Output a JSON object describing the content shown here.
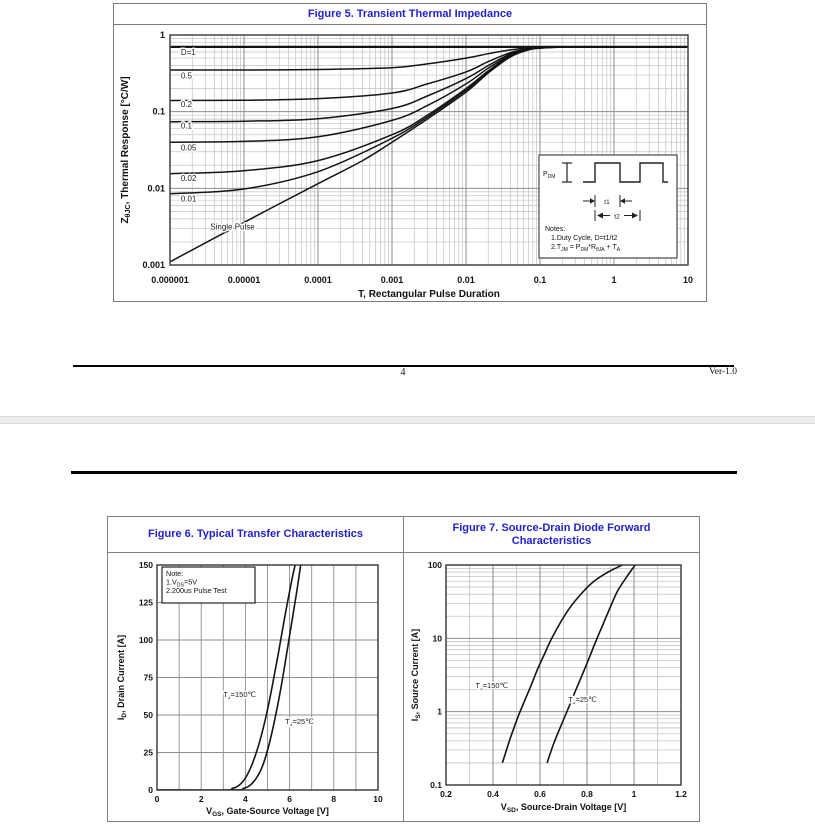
{
  "page1": {
    "figure_title": "Figure 5. Transient Thermal Impedance",
    "footer": {
      "page_number": "4",
      "version": "Ver-1.0"
    }
  },
  "page2": {
    "fig6_title": "Figure 6. Typical Transfer Characteristics",
    "fig7_title": "Figure 7. Source-Drain Diode Forward Characteristics"
  },
  "chart_data": [
    {
      "id": "fig5",
      "type": "line",
      "title": "Figure 5. Transient Thermal Impedance",
      "xlabel": "T, Rectangular Pulse Duration",
      "ylabel": "Z_{θJC}, Thermal Response [°C/W]",
      "xscale": "log",
      "yscale": "log",
      "xlim": [
        1e-06,
        10
      ],
      "ylim": [
        0.001,
        1
      ],
      "grid": true,
      "legend_position": "on-curve",
      "xticks": [
        [
          1e-06,
          "0.000001"
        ],
        [
          1e-05,
          "0.00001"
        ],
        [
          0.0001,
          "0.0001"
        ],
        [
          0.001,
          "0.001"
        ],
        [
          0.01,
          "0.01"
        ],
        [
          0.1,
          "0.1"
        ],
        [
          1,
          "1"
        ],
        [
          10,
          "10"
        ]
      ],
      "yticks": [
        [
          1,
          "1"
        ],
        [
          0.1,
          "0.1"
        ],
        [
          0.01,
          "0.01"
        ],
        [
          0.001,
          "0.001"
        ]
      ],
      "series": [
        {
          "label": "D=1",
          "label_at": [
            1.4e-06,
            0.55
          ],
          "width": 2.2,
          "points": [
            [
              1e-06,
              0.7
            ],
            [
              10,
              0.7
            ]
          ]
        },
        {
          "label": "0.5",
          "label_at": [
            1.4e-06,
            0.27
          ],
          "points": [
            [
              1e-06,
              0.35
            ],
            [
              1e-05,
              0.35
            ],
            [
              0.0001,
              0.355
            ],
            [
              0.001,
              0.375
            ],
            [
              0.003,
              0.42
            ],
            [
              0.01,
              0.5
            ],
            [
              0.02,
              0.57
            ],
            [
              0.04,
              0.64
            ],
            [
              0.07,
              0.68
            ],
            [
              0.1,
              0.695
            ],
            [
              0.3,
              0.7
            ],
            [
              10,
              0.7
            ]
          ]
        },
        {
          "label": "0.2",
          "label_at": [
            1.4e-06,
            0.115
          ],
          "points": [
            [
              1e-06,
              0.14
            ],
            [
              1e-05,
              0.141
            ],
            [
              0.0001,
              0.148
            ],
            [
              0.001,
              0.175
            ],
            [
              0.003,
              0.23
            ],
            [
              0.01,
              0.33
            ],
            [
              0.02,
              0.45
            ],
            [
              0.04,
              0.59
            ],
            [
              0.07,
              0.665
            ],
            [
              0.1,
              0.69
            ],
            [
              0.3,
              0.7
            ],
            [
              10,
              0.7
            ]
          ]
        },
        {
          "label": "0.1",
          "label_at": [
            1.4e-06,
            0.06
          ],
          "points": [
            [
              1e-06,
              0.074
            ],
            [
              1e-05,
              0.075
            ],
            [
              0.0001,
              0.081
            ],
            [
              0.001,
              0.11
            ],
            [
              0.003,
              0.16
            ],
            [
              0.01,
              0.27
            ],
            [
              0.02,
              0.4
            ],
            [
              0.04,
              0.57
            ],
            [
              0.07,
              0.66
            ],
            [
              0.1,
              0.685
            ],
            [
              0.3,
              0.7
            ],
            [
              10,
              0.7
            ]
          ]
        },
        {
          "label": "0.05",
          "label_at": [
            1.4e-06,
            0.031
          ],
          "points": [
            [
              1e-06,
              0.04
            ],
            [
              1e-05,
              0.041
            ],
            [
              0.0001,
              0.047
            ],
            [
              0.001,
              0.077
            ],
            [
              0.003,
              0.12
            ],
            [
              0.01,
              0.23
            ],
            [
              0.02,
              0.37
            ],
            [
              0.04,
              0.55
            ],
            [
              0.07,
              0.655
            ],
            [
              0.1,
              0.68
            ],
            [
              0.3,
              0.7
            ],
            [
              10,
              0.7
            ]
          ]
        },
        {
          "label": "0.02",
          "label_at": [
            1.4e-06,
            0.0125
          ],
          "points": [
            [
              1e-06,
              0.0155
            ],
            [
              1e-05,
              0.017
            ],
            [
              0.0001,
              0.023
            ],
            [
              0.001,
              0.05
            ],
            [
              0.003,
              0.09
            ],
            [
              0.01,
              0.2
            ],
            [
              0.02,
              0.34
            ],
            [
              0.04,
              0.54
            ],
            [
              0.07,
              0.65
            ],
            [
              0.1,
              0.68
            ],
            [
              0.3,
              0.7
            ],
            [
              10,
              0.7
            ]
          ]
        },
        {
          "label": "0.01",
          "label_at": [
            1.4e-06,
            0.0067
          ],
          "points": [
            [
              1e-06,
              0.0085
            ],
            [
              1e-05,
              0.0098
            ],
            [
              0.0001,
              0.0165
            ],
            [
              0.001,
              0.045
            ],
            [
              0.003,
              0.085
            ],
            [
              0.01,
              0.19
            ],
            [
              0.02,
              0.33
            ],
            [
              0.04,
              0.53
            ],
            [
              0.07,
              0.645
            ],
            [
              0.1,
              0.675
            ],
            [
              0.3,
              0.7
            ],
            [
              10,
              0.7
            ]
          ]
        },
        {
          "label": "Single Pulse",
          "label_at": [
            3.5e-06,
            0.0029
          ],
          "points": [
            [
              1e-06,
              0.0011
            ],
            [
              1e-05,
              0.0036
            ],
            [
              0.0001,
              0.0115
            ],
            [
              0.0004,
              0.023
            ],
            [
              0.001,
              0.04
            ],
            [
              0.003,
              0.08
            ],
            [
              0.01,
              0.18
            ],
            [
              0.02,
              0.32
            ],
            [
              0.04,
              0.52
            ],
            [
              0.07,
              0.64
            ],
            [
              0.1,
              0.672
            ],
            [
              0.3,
              0.7
            ],
            [
              10,
              0.7
            ]
          ]
        }
      ],
      "inset": {
        "power_label": "P_{DM}",
        "t1_label": "t1",
        "t2_label": "t2",
        "notes": [
          "Notes:",
          "1.Duty  Cycle, D=t1/t2",
          "2.T_{JM} = P_{DM}*R_{θJA} + T_{A}"
        ]
      }
    },
    {
      "id": "fig6",
      "type": "line",
      "title": "Figure 6. Typical Transfer Characteristics",
      "xlabel": "V_{GS}, Gate-Source Voltage [V]",
      "ylabel": "I_{D}, Drain Current [A]",
      "xscale": "linear",
      "yscale": "linear",
      "xlim": [
        0,
        10
      ],
      "ylim": [
        0,
        150
      ],
      "grid": true,
      "xticks": [
        [
          0,
          "0"
        ],
        [
          2,
          "2"
        ],
        [
          4,
          "4"
        ],
        [
          6,
          "6"
        ],
        [
          8,
          "8"
        ],
        [
          10,
          "10"
        ]
      ],
      "yticks": [
        [
          0,
          "0"
        ],
        [
          25,
          "25"
        ],
        [
          50,
          "50"
        ],
        [
          75,
          "75"
        ],
        [
          100,
          "100"
        ],
        [
          125,
          "125"
        ],
        [
          150,
          "150"
        ]
      ],
      "grid_step_x": 1,
      "grid_step_y": 25,
      "note": [
        "Note:",
        "1.V_{DS}=5V",
        "2.200us Pulse Test"
      ],
      "series": [
        {
          "label": "T_{J}=150℃",
          "label_at": [
            3.0,
            62
          ],
          "points": [
            [
              0,
              0
            ],
            [
              3.1,
              0
            ],
            [
              3.4,
              1
            ],
            [
              3.7,
              3
            ],
            [
              4.0,
              8
            ],
            [
              4.3,
              17
            ],
            [
              4.6,
              30
            ],
            [
              4.9,
              47
            ],
            [
              5.2,
              68
            ],
            [
              5.5,
              92
            ],
            [
              5.8,
              117
            ],
            [
              6.1,
              140
            ],
            [
              6.25,
              150
            ]
          ]
        },
        {
          "label": "T_{J}=25℃",
          "label_at": [
            5.8,
            44
          ],
          "points": [
            [
              0,
              0
            ],
            [
              3.5,
              0
            ],
            [
              3.9,
              1
            ],
            [
              4.2,
              3
            ],
            [
              4.5,
              8
            ],
            [
              4.8,
              17
            ],
            [
              5.1,
              32
            ],
            [
              5.4,
              52
            ],
            [
              5.7,
              76
            ],
            [
              6.0,
              103
            ],
            [
              6.3,
              130
            ],
            [
              6.5,
              150
            ]
          ]
        }
      ]
    },
    {
      "id": "fig7",
      "type": "line",
      "title": "Figure 7. Source-Drain Diode Forward Characteristics",
      "xlabel": "V_{SD}, Source-Drain Voltage [V]",
      "ylabel": "I_{S}, Source Current [A]",
      "xscale": "linear",
      "yscale": "log",
      "xlim": [
        0.2,
        1.2
      ],
      "ylim": [
        0.1,
        100
      ],
      "grid": true,
      "xticks": [
        [
          0.2,
          "0.2"
        ],
        [
          0.4,
          "0.4"
        ],
        [
          0.6,
          "0.6"
        ],
        [
          0.8,
          "0.8"
        ],
        [
          1,
          "1"
        ],
        [
          1.2,
          "1.2"
        ]
      ],
      "yticks": [
        [
          100,
          "100"
        ],
        [
          10,
          "10"
        ],
        [
          1,
          "1"
        ],
        [
          0.1,
          "0.1"
        ]
      ],
      "minor_step_x": 0.1,
      "series": [
        {
          "label": "T_{J}=150℃",
          "label_at": [
            0.325,
            2.1
          ],
          "points": [
            [
              0.44,
              0.2
            ],
            [
              0.47,
              0.4
            ],
            [
              0.5,
              0.75
            ],
            [
              0.53,
              1.3
            ],
            [
              0.56,
              2.2
            ],
            [
              0.59,
              3.8
            ],
            [
              0.62,
              6.2
            ],
            [
              0.65,
              10
            ],
            [
              0.69,
              17
            ],
            [
              0.73,
              27
            ],
            [
              0.78,
              42
            ],
            [
              0.83,
              60
            ],
            [
              0.89,
              80
            ],
            [
              0.95,
              100
            ]
          ]
        },
        {
          "label": "T_{J}=25℃",
          "label_at": [
            0.72,
            1.35
          ],
          "points": [
            [
              0.63,
              0.2
            ],
            [
              0.66,
              0.38
            ],
            [
              0.69,
              0.65
            ],
            [
              0.72,
              1.1
            ],
            [
              0.75,
              1.9
            ],
            [
              0.78,
              3.2
            ],
            [
              0.81,
              5.5
            ],
            [
              0.84,
              9.5
            ],
            [
              0.87,
              16
            ],
            [
              0.9,
              27
            ],
            [
              0.93,
              44
            ],
            [
              0.97,
              70
            ],
            [
              1.005,
              100
            ]
          ]
        }
      ]
    }
  ],
  "colors": {
    "figure_title_blue": "#2222cc",
    "curve": "#141414",
    "grid_major": "#8d8d8d",
    "grid_minor": "#c3c3c3",
    "page_separator": "#ededed"
  }
}
